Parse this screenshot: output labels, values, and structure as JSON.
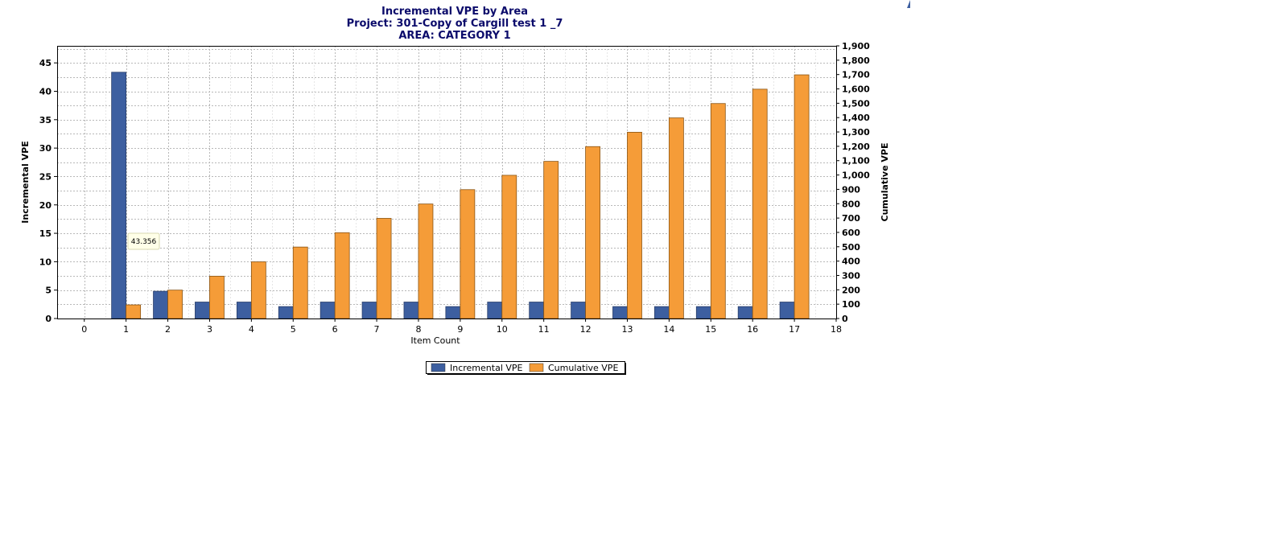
{
  "chart_data": {
    "type": "bar",
    "title": "Incremental VPE by Area",
    "subtitle_lines": [
      "Project: 301-Copy of Cargill test 1 _7",
      "AREA: CATEGORY 1"
    ],
    "xlabel": "Item Count",
    "ylabel_left": "Incremental VPE",
    "ylabel_right": "Cumulative VPE",
    "x": [
      0,
      1,
      2,
      3,
      4,
      5,
      6,
      7,
      8,
      9,
      10,
      11,
      12,
      13,
      14,
      15,
      16,
      17
    ],
    "xlim": [
      -0.65,
      18
    ],
    "x_ticks": [
      "0",
      "1",
      "2",
      "3",
      "4",
      "5",
      "6",
      "7",
      "8",
      "9",
      "10",
      "11",
      "12",
      "13",
      "14",
      "15",
      "16",
      "17",
      "18"
    ],
    "ylim_left": [
      0,
      48
    ],
    "y_ticks_left": [
      "0",
      "5",
      "10",
      "15",
      "20",
      "25",
      "30",
      "35",
      "40",
      "45"
    ],
    "ylim_right": [
      0,
      1900
    ],
    "y_ticks_right": [
      "0",
      "100",
      "200",
      "300",
      "400",
      "500",
      "600",
      "700",
      "800",
      "900",
      "1,000",
      "1,100",
      "1,200",
      "1,300",
      "1,400",
      "1,500",
      "1,600",
      "1,700",
      "1,800",
      "1,900"
    ],
    "grid": true,
    "legend_position": "bottom",
    "series": [
      {
        "name": "Incremental VPE",
        "axis": "left",
        "color": "#3d5fa0",
        "values": [
          0,
          43.356,
          4.8,
          2.9,
          2.9,
          2.1,
          2.9,
          2.9,
          2.9,
          2.1,
          2.9,
          2.9,
          2.9,
          2.1,
          2.1,
          2.1,
          2.1,
          2.9
        ]
      },
      {
        "name": "Cumulative VPE",
        "axis": "right",
        "color": "#f59c38",
        "values": [
          0,
          95,
          198,
          295,
          395,
          498,
          598,
          698,
          798,
          898,
          998,
          1095,
          1198,
          1298,
          1398,
          1498,
          1598,
          1698
        ]
      }
    ],
    "tooltip": {
      "text": "43.356"
    }
  }
}
